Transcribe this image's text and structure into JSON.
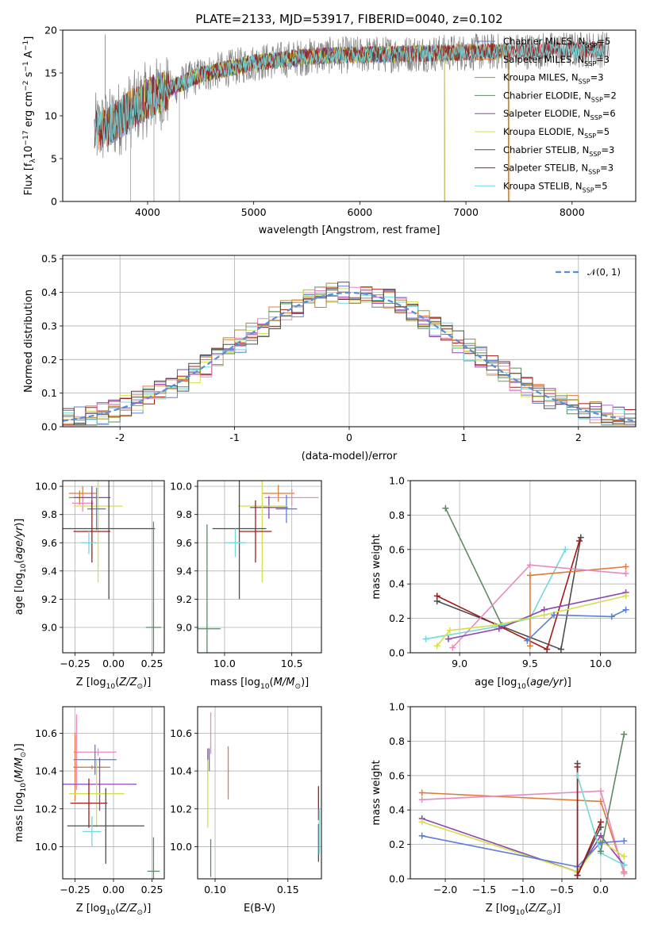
{
  "chart_data": [
    {
      "id": "spectrum",
      "type": "line",
      "title": "PLATE=2133, MJD=53917, FIBERID=0040, z=0.102",
      "xlabel": "wavelength [Angstrom, rest frame]",
      "ylabel": "Flux [f_λ10^-17 erg cm^-2 s^-1 A^-1]",
      "xlim": [
        3200,
        8600
      ],
      "ylim": [
        0,
        20
      ],
      "xticks": [
        4000,
        5000,
        6000,
        7000,
        8000
      ],
      "yticks": [
        0,
        5,
        10,
        15,
        20
      ],
      "grid": false,
      "legend_position": "top-right",
      "data_series": {
        "name": "data",
        "color": "#7f7f7f",
        "x_range": [
          3500,
          8350
        ]
      },
      "series": [
        {
          "name": "Chabrier MILES, N_SSP=5",
          "color": "#5b7fd6",
          "x_range": [
            3540,
            7400
          ]
        },
        {
          "name": "Salpeter MILES, N_SSP=3",
          "color": "#e07b39",
          "x_range": [
            3520,
            7410
          ]
        },
        {
          "name": "Kroupa MILES, N_SSP=3",
          "color": "#b5892a",
          "x_range": [
            3540,
            7400
          ]
        },
        {
          "name": "Chabrier ELODIE, N_SSP=2",
          "color": "#5d8a66",
          "x_range": [
            3900,
            6800
          ]
        },
        {
          "name": "Salpeter ELODIE, N_SSP=6",
          "color": "#8e44ad",
          "x_range": [
            3900,
            6800
          ]
        },
        {
          "name": "Kroupa ELODIE, N_SSP=5",
          "color": "#d4e04a",
          "x_range": [
            3900,
            6800
          ]
        },
        {
          "name": "Chabrier STELIB, N_SSP=3",
          "color": "#4d4d4d",
          "x_range": [
            3500,
            8300
          ]
        },
        {
          "name": "Salpeter STELIB, N_SSP=3",
          "color": "#a01c1c",
          "x_range": [
            3500,
            8300
          ]
        },
        {
          "name": "Kroupa STELIB, N_SSP=5",
          "color": "#72d8dc",
          "x_range": [
            3500,
            8300
          ]
        }
      ]
    },
    {
      "id": "residuals",
      "type": "histogram",
      "xlabel": "(data-model)/error",
      "ylabel": "Normed distribution",
      "xlim": [
        -2.5,
        2.5
      ],
      "ylim": [
        0,
        0.51
      ],
      "xticks": [
        -2,
        -1,
        0,
        1,
        2
      ],
      "yticks": [
        0.0,
        0.1,
        0.2,
        0.3,
        0.4,
        0.5
      ],
      "grid": true,
      "legend_position": "top-right",
      "legend": "N(0,1)",
      "bin_width": 0.1
    },
    {
      "id": "age_vs_Z",
      "type": "errorbar",
      "xlabel": "Z [log10(Z/Z⊙)]",
      "ylabel": "age  [log10(age/yr)]",
      "xlim": [
        -0.33,
        0.33
      ],
      "ylim": [
        8.82,
        10.04
      ],
      "xticks": [
        -0.25,
        0.0,
        0.25
      ],
      "yticks": [
        9.0,
        9.2,
        9.4,
        9.6,
        9.8,
        10.0
      ],
      "grid": true,
      "points": [
        {
          "color": "#e07b39",
          "x": -0.2,
          "xerr": 0.09,
          "y": 9.95,
          "yerr": 0.05
        },
        {
          "color": "#b5892a",
          "x": -0.22,
          "xerr": 0.07,
          "y": 9.92,
          "yerr": 0.05
        },
        {
          "color": "#e88ac0",
          "x": -0.2,
          "xerr": 0.07,
          "y": 9.88,
          "yerr": 0.06
        },
        {
          "color": "#8e44ad",
          "x": -0.14,
          "xerr": 0.12,
          "y": 9.92,
          "yerr": 0.08
        },
        {
          "color": "#d4e04a",
          "x": -0.1,
          "xerr": 0.16,
          "y": 9.86,
          "yerr": 0.54
        },
        {
          "color": "#5b7fd6",
          "x": -0.11,
          "xerr": 0.06,
          "y": 9.84,
          "yerr": 0.15
        },
        {
          "color": "#4d4d4d",
          "x": -0.03,
          "xerr": 0.3,
          "y": 9.7,
          "yerr": 0.5
        },
        {
          "color": "#a01c1c",
          "x": -0.14,
          "xerr": 0.12,
          "y": 9.68,
          "yerr": 0.22
        },
        {
          "color": "#72d8dc",
          "x": -0.16,
          "xerr": 0.05,
          "y": 9.6,
          "yerr": 0.08
        },
        {
          "color": "#5d8a66",
          "x": 0.26,
          "xerr": 0.05,
          "y": 9.0,
          "yerr": 0.75
        }
      ]
    },
    {
      "id": "age_vs_mass",
      "type": "errorbar",
      "xlabel": "mass [log10(M/M⊙)]",
      "ylabel": "",
      "xlim": [
        9.8,
        10.72
      ],
      "ylim": [
        8.82,
        10.04
      ],
      "xticks": [
        10.0,
        10.5
      ],
      "yticks": [
        9.0,
        9.2,
        9.4,
        9.6,
        9.8,
        10.0
      ],
      "grid": true,
      "points": [
        {
          "color": "#e07b39",
          "x": 10.4,
          "xerr": 0.12,
          "y": 9.95,
          "yerr": 0.06
        },
        {
          "color": "#e88ac0",
          "x": 10.5,
          "xerr": 0.2,
          "y": 9.92,
          "yerr": 0.06
        },
        {
          "color": "#8e44ad",
          "x": 10.33,
          "xerr": 0.14,
          "y": 9.85,
          "yerr": 0.08
        },
        {
          "color": "#5b7fd6",
          "x": 10.46,
          "xerr": 0.08,
          "y": 9.84,
          "yerr": 0.1
        },
        {
          "color": "#d4e04a",
          "x": 10.28,
          "xerr": 0.18,
          "y": 9.86,
          "yerr": 0.54
        },
        {
          "color": "#4d4d4d",
          "x": 10.11,
          "xerr": 0.2,
          "y": 9.7,
          "yerr": 0.5
        },
        {
          "color": "#a01c1c",
          "x": 10.23,
          "xerr": 0.12,
          "y": 9.68,
          "yerr": 0.22
        },
        {
          "color": "#72d8dc",
          "x": 10.08,
          "xerr": 0.08,
          "y": 9.6,
          "yerr": 0.1
        },
        {
          "color": "#5d8a66",
          "x": 9.87,
          "xerr": 0.1,
          "y": 8.99,
          "yerr": 0.74
        }
      ]
    },
    {
      "id": "weight_vs_age",
      "type": "line",
      "xlabel": "age  [log10(age/yr)]",
      "ylabel": "mass weight",
      "xlim": [
        8.65,
        10.25
      ],
      "ylim": [
        0,
        1
      ],
      "xticks": [
        9.0,
        9.5,
        10.0
      ],
      "yticks": [
        0.0,
        0.2,
        0.4,
        0.6,
        0.8,
        1.0
      ],
      "grid": true,
      "series": [
        {
          "color": "#5d8a66",
          "x": [
            8.9,
            9.3
          ],
          "y": [
            0.84,
            0.16
          ]
        },
        {
          "color": "#4d4d4d",
          "x": [
            8.84,
            9.72,
            9.86
          ],
          "y": [
            0.3,
            0.02,
            0.67
          ]
        },
        {
          "color": "#a01c1c",
          "x": [
            8.84,
            9.62,
            9.85
          ],
          "y": [
            0.33,
            0.02,
            0.65
          ]
        },
        {
          "color": "#72d8dc",
          "x": [
            8.76,
            9.25,
            9.5,
            9.75
          ],
          "y": [
            0.08,
            0.15,
            0.2,
            0.6
          ]
        },
        {
          "color": "#e07b39",
          "x": [
            9.5,
            9.5,
            10.18
          ],
          "y": [
            0.04,
            0.45,
            0.5
          ]
        },
        {
          "color": "#e88ac0",
          "x": [
            8.95,
            9.5,
            10.18
          ],
          "y": [
            0.03,
            0.51,
            0.46
          ]
        },
        {
          "color": "#8e44ad",
          "x": [
            8.92,
            9.28,
            9.6,
            10.18
          ],
          "y": [
            0.08,
            0.14,
            0.25,
            0.35
          ]
        },
        {
          "color": "#d4e04a",
          "x": [
            8.84,
            8.93,
            9.25,
            9.6,
            10.18
          ],
          "y": [
            0.04,
            0.13,
            0.16,
            0.22,
            0.33
          ]
        },
        {
          "color": "#5b7fd6",
          "x": [
            9.48,
            9.67,
            10.08,
            10.18
          ],
          "y": [
            0.07,
            0.22,
            0.21,
            0.25
          ]
        }
      ]
    },
    {
      "id": "mass_vs_Z",
      "type": "errorbar",
      "xlabel": "Z [log10(Z/Z⊙)]",
      "ylabel": "mass [log10(M/M⊙)]",
      "xlim": [
        -0.33,
        0.33
      ],
      "ylim": [
        9.83,
        10.74
      ],
      "xticks": [
        -0.25,
        0.0,
        0.25
      ],
      "yticks": [
        10.0,
        10.2,
        10.4,
        10.6
      ],
      "grid": true,
      "points": [
        {
          "color": "#e88ac0",
          "x": -0.24,
          "xerr": 0.02,
          "y": 10.5,
          "yerr": 0.2
        },
        {
          "color": "#e88ac0",
          "x": -0.1,
          "xerr": 0.12,
          "y": 10.5,
          "yerr": 0.02
        },
        {
          "color": "#e07b39",
          "x": -0.25,
          "xerr": 0.01,
          "y": 10.42,
          "yerr": 0.18
        },
        {
          "color": "#e07b39",
          "x": -0.14,
          "xerr": 0.12,
          "y": 10.42,
          "yerr": 0.01
        },
        {
          "color": "#5b7fd6",
          "x": -0.12,
          "xerr": 0.14,
          "y": 10.46,
          "yerr": 0.08
        },
        {
          "color": "#8e44ad",
          "x": -0.09,
          "xerr": 0.24,
          "y": 10.33,
          "yerr": 0.14
        },
        {
          "color": "#d4e04a",
          "x": -0.11,
          "xerr": 0.18,
          "y": 10.28,
          "yerr": 0.18
        },
        {
          "color": "#a01c1c",
          "x": -0.16,
          "xerr": 0.12,
          "y": 10.23,
          "yerr": 0.13
        },
        {
          "color": "#4d4d4d",
          "x": -0.05,
          "xerr": 0.25,
          "y": 10.11,
          "yerr": 0.2
        },
        {
          "color": "#72d8dc",
          "x": -0.14,
          "xerr": 0.06,
          "y": 10.08,
          "yerr": 0.08
        },
        {
          "color": "#5d8a66",
          "x": 0.26,
          "xerr": 0.04,
          "y": 9.87,
          "yerr": 0.18
        }
      ]
    },
    {
      "id": "mass_vs_ebv",
      "type": "errorbar",
      "xlabel": "E(B-V)",
      "ylabel": "",
      "xlim": [
        0.088,
        0.173
      ],
      "ylim": [
        9.83,
        10.74
      ],
      "xticks": [
        0.1,
        0.15
      ],
      "yticks": [
        10.0,
        10.2,
        10.4,
        10.6
      ],
      "grid": true,
      "points": [
        {
          "color": "#e88ac0",
          "x": 0.097,
          "xerr": 0,
          "y": 10.6,
          "yerr": 0.11
        },
        {
          "color": "#8e44ad",
          "x": 0.095,
          "xerr": 0,
          "y": 10.45,
          "yerr": 0.07
        },
        {
          "color": "#5b7fd6",
          "x": 0.096,
          "xerr": 0,
          "y": 10.46,
          "yerr": 0.06
        },
        {
          "color": "#d4e04a",
          "x": 0.095,
          "xerr": 0,
          "y": 10.28,
          "yerr": 0.18
        },
        {
          "color": "#e07b39",
          "x": 0.109,
          "xerr": 0,
          "y": 10.39,
          "yerr": 0.14
        },
        {
          "color": "#5d8a66",
          "x": 0.097,
          "xerr": 0,
          "y": 9.94,
          "yerr": 0.1
        },
        {
          "color": "#a01c1c",
          "x": 0.171,
          "xerr": 0,
          "y": 10.23,
          "yerr": 0.09
        },
        {
          "color": "#4d4d4d",
          "x": 0.171,
          "xerr": 0,
          "y": 10.02,
          "yerr": 0.1
        },
        {
          "color": "#72d8dc",
          "x": 0.1715,
          "xerr": 0,
          "y": 10.08,
          "yerr": 0.12
        }
      ]
    },
    {
      "id": "weight_vs_Z",
      "type": "line",
      "xlabel": "Z [log10(Z/Z⊙)]",
      "ylabel": "mass weight",
      "xlim": [
        -2.45,
        0.45
      ],
      "ylim": [
        0,
        1
      ],
      "xticks": [
        -2.0,
        -1.5,
        -1.0,
        -0.5,
        0.0
      ],
      "yticks": [
        0.0,
        0.2,
        0.4,
        0.6,
        0.8,
        1.0
      ],
      "grid": true,
      "series": [
        {
          "color": "#e07b39",
          "x": [
            -2.3,
            0.0,
            0.3
          ],
          "y": [
            0.5,
            0.45,
            0.04
          ]
        },
        {
          "color": "#e88ac0",
          "x": [
            -2.3,
            0.0,
            0.3
          ],
          "y": [
            0.46,
            0.51,
            0.03
          ]
        },
        {
          "color": "#8e44ad",
          "x": [
            -2.3,
            -0.3,
            0.0,
            0.3
          ],
          "y": [
            0.35,
            0.04,
            0.25,
            0.08
          ]
        },
        {
          "color": "#d4e04a",
          "x": [
            -2.3,
            -0.3,
            0.0,
            0.3
          ],
          "y": [
            0.33,
            0.04,
            0.22,
            0.13
          ]
        },
        {
          "color": "#5b7fd6",
          "x": [
            -2.3,
            -0.3,
            0.0,
            0.3
          ],
          "y": [
            0.25,
            0.07,
            0.21,
            0.22
          ]
        },
        {
          "color": "#4d4d4d",
          "x": [
            -0.3,
            -0.3,
            0.0
          ],
          "y": [
            0.67,
            0.02,
            0.3
          ]
        },
        {
          "color": "#a01c1c",
          "x": [
            -0.3,
            -0.3,
            0.0
          ],
          "y": [
            0.65,
            0.02,
            0.33
          ]
        },
        {
          "color": "#72d8dc",
          "x": [
            -0.3,
            0.0,
            0.3
          ],
          "y": [
            0.6,
            0.15,
            0.08
          ]
        },
        {
          "color": "#5d8a66",
          "x": [
            0.0,
            0.3
          ],
          "y": [
            0.16,
            0.84
          ]
        }
      ]
    }
  ]
}
